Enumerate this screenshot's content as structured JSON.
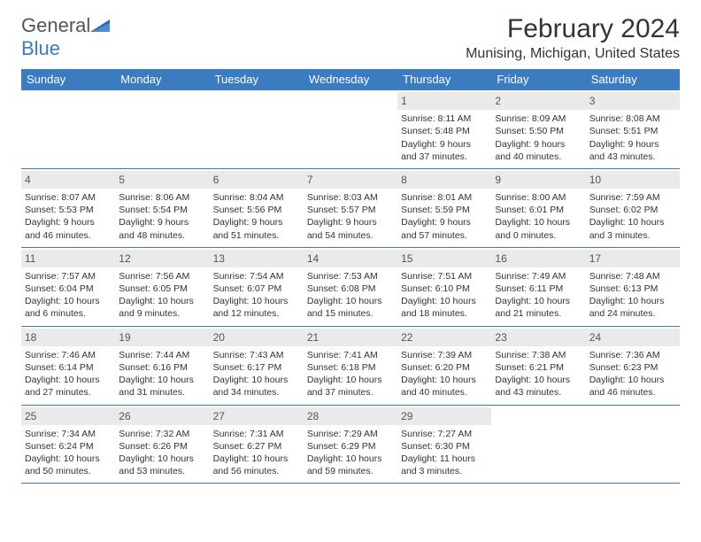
{
  "logo": {
    "word1": "General",
    "word2": "Blue"
  },
  "title": "February 2024",
  "location": "Munising, Michigan, United States",
  "colors": {
    "header_bg": "#3b7bbf",
    "header_text": "#ffffff",
    "daynum_bg": "#eaeaea",
    "border": "#3b7bbf",
    "text": "#333333"
  },
  "daysOfWeek": [
    "Sunday",
    "Monday",
    "Tuesday",
    "Wednesday",
    "Thursday",
    "Friday",
    "Saturday"
  ],
  "weeks": [
    [
      null,
      null,
      null,
      null,
      {
        "n": "1",
        "sr": "Sunrise: 8:11 AM",
        "ss": "Sunset: 5:48 PM",
        "d1": "Daylight: 9 hours",
        "d2": "and 37 minutes."
      },
      {
        "n": "2",
        "sr": "Sunrise: 8:09 AM",
        "ss": "Sunset: 5:50 PM",
        "d1": "Daylight: 9 hours",
        "d2": "and 40 minutes."
      },
      {
        "n": "3",
        "sr": "Sunrise: 8:08 AM",
        "ss": "Sunset: 5:51 PM",
        "d1": "Daylight: 9 hours",
        "d2": "and 43 minutes."
      }
    ],
    [
      {
        "n": "4",
        "sr": "Sunrise: 8:07 AM",
        "ss": "Sunset: 5:53 PM",
        "d1": "Daylight: 9 hours",
        "d2": "and 46 minutes."
      },
      {
        "n": "5",
        "sr": "Sunrise: 8:06 AM",
        "ss": "Sunset: 5:54 PM",
        "d1": "Daylight: 9 hours",
        "d2": "and 48 minutes."
      },
      {
        "n": "6",
        "sr": "Sunrise: 8:04 AM",
        "ss": "Sunset: 5:56 PM",
        "d1": "Daylight: 9 hours",
        "d2": "and 51 minutes."
      },
      {
        "n": "7",
        "sr": "Sunrise: 8:03 AM",
        "ss": "Sunset: 5:57 PM",
        "d1": "Daylight: 9 hours",
        "d2": "and 54 minutes."
      },
      {
        "n": "8",
        "sr": "Sunrise: 8:01 AM",
        "ss": "Sunset: 5:59 PM",
        "d1": "Daylight: 9 hours",
        "d2": "and 57 minutes."
      },
      {
        "n": "9",
        "sr": "Sunrise: 8:00 AM",
        "ss": "Sunset: 6:01 PM",
        "d1": "Daylight: 10 hours",
        "d2": "and 0 minutes."
      },
      {
        "n": "10",
        "sr": "Sunrise: 7:59 AM",
        "ss": "Sunset: 6:02 PM",
        "d1": "Daylight: 10 hours",
        "d2": "and 3 minutes."
      }
    ],
    [
      {
        "n": "11",
        "sr": "Sunrise: 7:57 AM",
        "ss": "Sunset: 6:04 PM",
        "d1": "Daylight: 10 hours",
        "d2": "and 6 minutes."
      },
      {
        "n": "12",
        "sr": "Sunrise: 7:56 AM",
        "ss": "Sunset: 6:05 PM",
        "d1": "Daylight: 10 hours",
        "d2": "and 9 minutes."
      },
      {
        "n": "13",
        "sr": "Sunrise: 7:54 AM",
        "ss": "Sunset: 6:07 PM",
        "d1": "Daylight: 10 hours",
        "d2": "and 12 minutes."
      },
      {
        "n": "14",
        "sr": "Sunrise: 7:53 AM",
        "ss": "Sunset: 6:08 PM",
        "d1": "Daylight: 10 hours",
        "d2": "and 15 minutes."
      },
      {
        "n": "15",
        "sr": "Sunrise: 7:51 AM",
        "ss": "Sunset: 6:10 PM",
        "d1": "Daylight: 10 hours",
        "d2": "and 18 minutes."
      },
      {
        "n": "16",
        "sr": "Sunrise: 7:49 AM",
        "ss": "Sunset: 6:11 PM",
        "d1": "Daylight: 10 hours",
        "d2": "and 21 minutes."
      },
      {
        "n": "17",
        "sr": "Sunrise: 7:48 AM",
        "ss": "Sunset: 6:13 PM",
        "d1": "Daylight: 10 hours",
        "d2": "and 24 minutes."
      }
    ],
    [
      {
        "n": "18",
        "sr": "Sunrise: 7:46 AM",
        "ss": "Sunset: 6:14 PM",
        "d1": "Daylight: 10 hours",
        "d2": "and 27 minutes."
      },
      {
        "n": "19",
        "sr": "Sunrise: 7:44 AM",
        "ss": "Sunset: 6:16 PM",
        "d1": "Daylight: 10 hours",
        "d2": "and 31 minutes."
      },
      {
        "n": "20",
        "sr": "Sunrise: 7:43 AM",
        "ss": "Sunset: 6:17 PM",
        "d1": "Daylight: 10 hours",
        "d2": "and 34 minutes."
      },
      {
        "n": "21",
        "sr": "Sunrise: 7:41 AM",
        "ss": "Sunset: 6:18 PM",
        "d1": "Daylight: 10 hours",
        "d2": "and 37 minutes."
      },
      {
        "n": "22",
        "sr": "Sunrise: 7:39 AM",
        "ss": "Sunset: 6:20 PM",
        "d1": "Daylight: 10 hours",
        "d2": "and 40 minutes."
      },
      {
        "n": "23",
        "sr": "Sunrise: 7:38 AM",
        "ss": "Sunset: 6:21 PM",
        "d1": "Daylight: 10 hours",
        "d2": "and 43 minutes."
      },
      {
        "n": "24",
        "sr": "Sunrise: 7:36 AM",
        "ss": "Sunset: 6:23 PM",
        "d1": "Daylight: 10 hours",
        "d2": "and 46 minutes."
      }
    ],
    [
      {
        "n": "25",
        "sr": "Sunrise: 7:34 AM",
        "ss": "Sunset: 6:24 PM",
        "d1": "Daylight: 10 hours",
        "d2": "and 50 minutes."
      },
      {
        "n": "26",
        "sr": "Sunrise: 7:32 AM",
        "ss": "Sunset: 6:26 PM",
        "d1": "Daylight: 10 hours",
        "d2": "and 53 minutes."
      },
      {
        "n": "27",
        "sr": "Sunrise: 7:31 AM",
        "ss": "Sunset: 6:27 PM",
        "d1": "Daylight: 10 hours",
        "d2": "and 56 minutes."
      },
      {
        "n": "28",
        "sr": "Sunrise: 7:29 AM",
        "ss": "Sunset: 6:29 PM",
        "d1": "Daylight: 10 hours",
        "d2": "and 59 minutes."
      },
      {
        "n": "29",
        "sr": "Sunrise: 7:27 AM",
        "ss": "Sunset: 6:30 PM",
        "d1": "Daylight: 11 hours",
        "d2": "and 3 minutes."
      },
      null,
      null
    ]
  ]
}
